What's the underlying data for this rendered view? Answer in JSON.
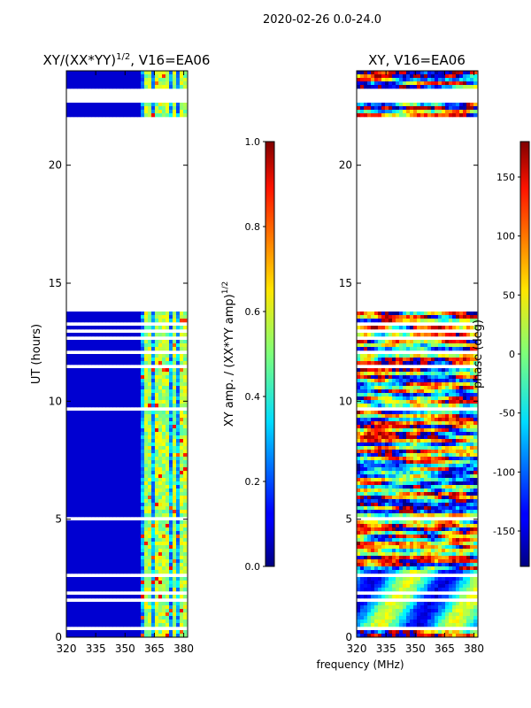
{
  "figure": {
    "suptitle": "2020-02-26 0.0-24.0",
    "shared_xlabel": "frequency (MHz)"
  },
  "chart_data": [
    {
      "type": "heatmap",
      "title_main": "XY/(XX*YY)",
      "title_exp": "1/2",
      "title_tail": ", V16=EA06",
      "ylabel": "UT (hours)",
      "xlim": [
        320,
        382
      ],
      "ylim": [
        0,
        24
      ],
      "xticks": [
        320,
        335,
        350,
        365,
        380
      ],
      "yticks": [
        0,
        5,
        10,
        15,
        20
      ],
      "colorbar": {
        "label_main": "XY amp. / (XX*YY amp)",
        "label_exp": "1/2",
        "range": [
          0.0,
          1.0
        ],
        "ticks": [
          "0.0",
          "0.2",
          "0.4",
          "0.6",
          "0.8",
          "1.0"
        ],
        "colormap": "jet"
      },
      "data_blocks_ut": [
        [
          0.0,
          0.3
        ],
        [
          0.5,
          13.8
        ],
        [
          22.1,
          22.6
        ],
        [
          23.3,
          24.0
        ]
      ],
      "background_value": 0.08,
      "active_band_mhz": [
        359,
        382
      ]
    },
    {
      "type": "heatmap",
      "title": "XY, V16=EA06",
      "xlim": [
        320,
        382
      ],
      "ylim": [
        0,
        24
      ],
      "xticks": [
        320,
        335,
        350,
        365,
        380
      ],
      "yticks": [
        0,
        5,
        10,
        15,
        20
      ],
      "colorbar": {
        "label": "phase (deg)",
        "range": [
          -180,
          180
        ],
        "ticks": [
          "-150",
          "-100",
          "-50",
          "0",
          "50",
          "100",
          "150"
        ],
        "colormap": "jet"
      },
      "data_blocks_ut": [
        [
          0.0,
          0.3
        ],
        [
          0.5,
          13.8
        ],
        [
          22.1,
          22.6
        ],
        [
          23.3,
          24.0
        ]
      ]
    }
  ]
}
